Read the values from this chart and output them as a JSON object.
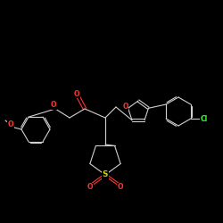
{
  "background_color": "#000000",
  "bond_color": "#d0d0d0",
  "atom_colors": {
    "O": "#ff3333",
    "N": "#3333ff",
    "S": "#cccc00",
    "Cl": "#33ff33",
    "C": "#d0d0d0"
  },
  "figsize": [
    2.5,
    2.5
  ],
  "dpi": 100,
  "lw": 0.8,
  "fontsize": 5.5
}
